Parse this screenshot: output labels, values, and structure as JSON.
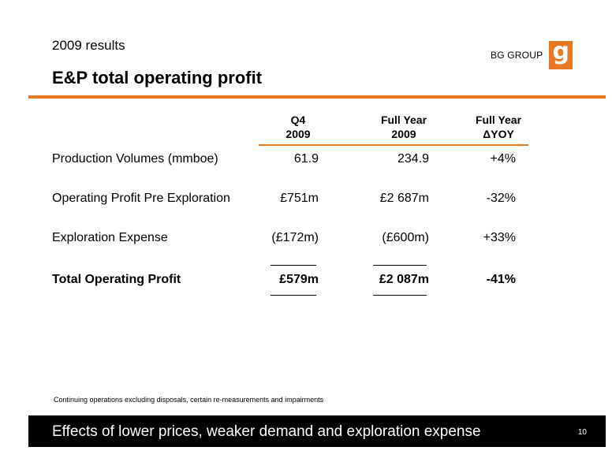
{
  "header": {
    "subtitle": "2009 results",
    "title": "E&P total operating profit",
    "logo_text": "BG GROUP",
    "logo_glyph": "g",
    "accent_color": "#e87722"
  },
  "table": {
    "columns": [
      {
        "line1": "Q4",
        "line2": "2009"
      },
      {
        "line1": "Full Year",
        "line2": "2009"
      },
      {
        "line1": "Full Year",
        "line2": "ΔYOY"
      }
    ],
    "rows": [
      {
        "label": "Production Volumes (mmboe)",
        "q4": "61.9",
        "fy": "234.9",
        "yoy": "+4%"
      },
      {
        "label": "Operating Profit Pre Exploration",
        "q4": "£751m",
        "fy": "£2 687m",
        "yoy": "-32%"
      },
      {
        "label": "Exploration Expense",
        "q4": "(£172m)",
        "fy": "(£600m)",
        "yoy": "+33%"
      },
      {
        "label": "Total Operating Profit",
        "q4": "£579m",
        "fy": "£2 087m",
        "yoy": "-41%"
      }
    ]
  },
  "footnote": "Continuing operations excluding disposals, certain re-measurements and impairments",
  "banner": {
    "text": "Effects of lower prices, weaker demand and exploration expense",
    "page_number": "10"
  }
}
